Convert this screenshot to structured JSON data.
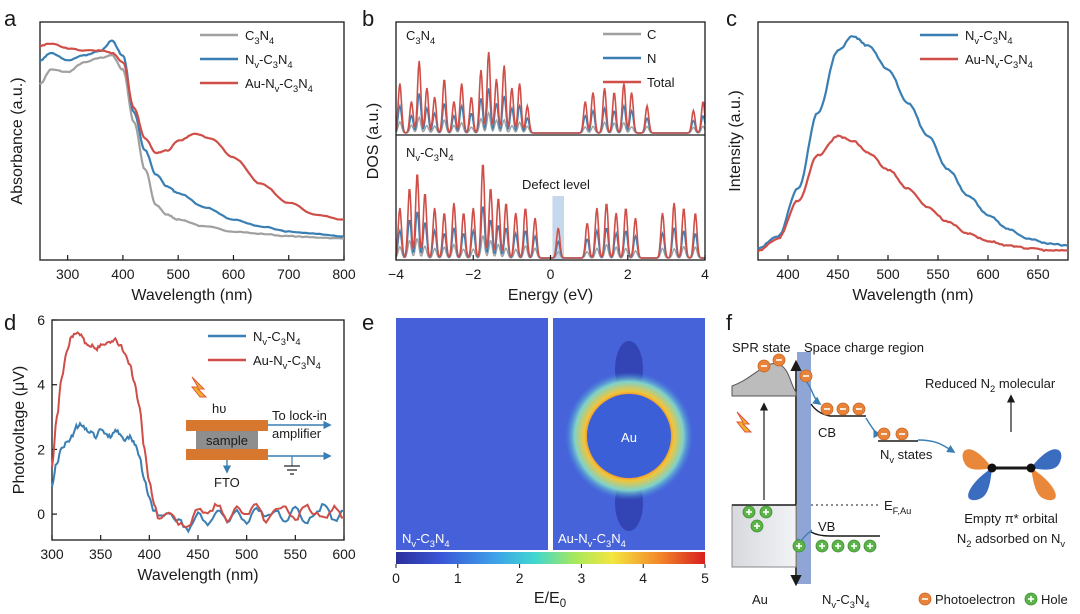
{
  "panels": {
    "a": "a",
    "b": "b",
    "c": "c",
    "d": "d",
    "e": "e",
    "f": "f"
  },
  "colors": {
    "gray": "#a0a0a0",
    "blue": "#3a7fb3",
    "red": "#cf4f48",
    "orange": "#e7833a",
    "green": "#5bb34a",
    "axis": "#1a1a1a"
  },
  "chart_data": [
    {
      "id": "a",
      "type": "line",
      "xlabel": "Wavelength (nm)",
      "ylabel": "Absorbance (a.u.)",
      "xlim": [
        250,
        800
      ],
      "ylim": [
        0,
        1
      ],
      "xticks": [
        300,
        400,
        500,
        600,
        700,
        800
      ],
      "legend_position": "top-right",
      "series": [
        {
          "name": "C3N4",
          "color": "gray",
          "x": [
            250,
            270,
            300,
            330,
            360,
            380,
            400,
            420,
            440,
            460,
            480,
            500,
            550,
            600,
            650,
            700,
            750,
            800
          ],
          "y": [
            0.74,
            0.8,
            0.79,
            0.83,
            0.85,
            0.86,
            0.8,
            0.58,
            0.38,
            0.23,
            0.19,
            0.17,
            0.14,
            0.12,
            0.11,
            0.1,
            0.095,
            0.09
          ]
        },
        {
          "name": "Nv-C3N4",
          "color": "blue",
          "x": [
            250,
            270,
            300,
            330,
            360,
            380,
            400,
            420,
            440,
            460,
            480,
            500,
            550,
            600,
            650,
            700,
            750,
            800
          ],
          "y": [
            0.84,
            0.87,
            0.84,
            0.86,
            0.88,
            0.92,
            0.86,
            0.62,
            0.46,
            0.36,
            0.31,
            0.28,
            0.22,
            0.17,
            0.14,
            0.12,
            0.11,
            0.1
          ]
        },
        {
          "name": "Au-Nv-C3N4",
          "color": "red",
          "x": [
            250,
            270,
            300,
            330,
            360,
            380,
            400,
            420,
            440,
            460,
            480,
            500,
            530,
            560,
            600,
            650,
            700,
            750,
            800
          ],
          "y": [
            0.9,
            0.91,
            0.89,
            0.88,
            0.88,
            0.87,
            0.83,
            0.64,
            0.51,
            0.45,
            0.46,
            0.5,
            0.53,
            0.51,
            0.43,
            0.32,
            0.24,
            0.19,
            0.17
          ]
        }
      ],
      "legend_labels": [
        {
          "prefix": "C",
          "parts": [
            [
              "C",
              "",
              ""
            ],
            [
              "3",
              "sub",
              ""
            ],
            [
              "N",
              "",
              ""
            ],
            [
              "4",
              "sub",
              ""
            ]
          ]
        }
      ],
      "legend": [
        {
          "series": "C3N4",
          "parts": [
            [
              "C",
              ""
            ],
            [
              "3",
              "sub"
            ],
            [
              "N",
              ""
            ],
            [
              "4",
              "sub"
            ]
          ]
        },
        {
          "series": "Nv-C3N4",
          "parts": [
            [
              "N",
              ""
            ],
            [
              "v",
              "sub"
            ],
            [
              "-C",
              ""
            ],
            [
              "3",
              "sub"
            ],
            [
              "N",
              ""
            ],
            [
              "4",
              "sub"
            ]
          ]
        },
        {
          "series": "Au-Nv-C3N4",
          "parts": [
            [
              "Au-N",
              ""
            ],
            [
              "v",
              "sub"
            ],
            [
              "-C",
              ""
            ],
            [
              "3",
              "sub"
            ],
            [
              "N",
              ""
            ],
            [
              "4",
              "sub"
            ]
          ]
        }
      ]
    },
    {
      "id": "b",
      "type": "line",
      "xlabel": "Energy (eV)",
      "ylabel": "DOS (a.u.)",
      "xlim": [
        -4,
        4
      ],
      "xticks": [
        "-4",
        "-2",
        "0",
        "2",
        "4"
      ],
      "xtick_values": [
        -4,
        -2,
        0,
        2,
        4
      ],
      "legend_position": "top-right",
      "top_label": [
        [
          "C",
          ""
        ],
        [
          "3",
          "sub"
        ],
        [
          "N",
          ""
        ],
        [
          "4",
          "sub"
        ]
      ],
      "bottom_label": [
        [
          "N",
          ""
        ],
        [
          "v",
          "sub"
        ],
        [
          "-C",
          ""
        ],
        [
          "3",
          "sub"
        ],
        [
          "N",
          ""
        ],
        [
          "4",
          "sub"
        ]
      ],
      "annotation": "Defect level",
      "defect_band": [
        0.05,
        0.35
      ],
      "legend": [
        {
          "name": "C",
          "color": "gray"
        },
        {
          "name": "N",
          "color": "blue"
        },
        {
          "name": "Total",
          "color": "red"
        }
      ],
      "top_peaks": [
        {
          "x": -3.9,
          "h": 0.55
        },
        {
          "x": -3.6,
          "h": 0.35
        },
        {
          "x": -3.4,
          "h": 0.8
        },
        {
          "x": -3.2,
          "h": 0.5
        },
        {
          "x": -3.0,
          "h": 0.4
        },
        {
          "x": -2.75,
          "h": 0.6
        },
        {
          "x": -2.5,
          "h": 0.35
        },
        {
          "x": -2.3,
          "h": 0.55
        },
        {
          "x": -2.05,
          "h": 0.4
        },
        {
          "x": -1.8,
          "h": 0.7
        },
        {
          "x": -1.6,
          "h": 0.9
        },
        {
          "x": -1.4,
          "h": 0.6
        },
        {
          "x": -1.2,
          "h": 0.75
        },
        {
          "x": -1.0,
          "h": 0.5
        },
        {
          "x": -0.8,
          "h": 0.55
        },
        {
          "x": -0.6,
          "h": 0.3
        },
        {
          "x": 0.9,
          "h": 0.35
        },
        {
          "x": 1.1,
          "h": 0.45
        },
        {
          "x": 1.4,
          "h": 0.5
        },
        {
          "x": 1.65,
          "h": 0.45
        },
        {
          "x": 1.9,
          "h": 0.55
        },
        {
          "x": 2.1,
          "h": 0.45
        },
        {
          "x": 2.5,
          "h": 0.3
        },
        {
          "x": 3.7,
          "h": 0.25
        },
        {
          "x": 3.95,
          "h": 0.35
        }
      ],
      "bottom_peaks": [
        {
          "x": -3.9,
          "h": 0.5
        },
        {
          "x": -3.65,
          "h": 0.7
        },
        {
          "x": -3.45,
          "h": 0.85
        },
        {
          "x": -3.25,
          "h": 0.65
        },
        {
          "x": -3.0,
          "h": 0.5
        },
        {
          "x": -2.75,
          "h": 0.45
        },
        {
          "x": -2.5,
          "h": 0.55
        },
        {
          "x": -2.25,
          "h": 0.45
        },
        {
          "x": -2.0,
          "h": 0.5
        },
        {
          "x": -1.75,
          "h": 0.95
        },
        {
          "x": -1.55,
          "h": 0.7
        },
        {
          "x": -1.35,
          "h": 0.6
        },
        {
          "x": -1.15,
          "h": 0.55
        },
        {
          "x": -0.9,
          "h": 0.45
        },
        {
          "x": -0.65,
          "h": 0.5
        },
        {
          "x": -0.4,
          "h": 0.4
        },
        {
          "x": 0.2,
          "h": 0.3
        },
        {
          "x": 0.95,
          "h": 0.35
        },
        {
          "x": 1.2,
          "h": 0.5
        },
        {
          "x": 1.45,
          "h": 0.55
        },
        {
          "x": 1.7,
          "h": 0.45
        },
        {
          "x": 1.95,
          "h": 0.5
        },
        {
          "x": 2.2,
          "h": 0.4
        },
        {
          "x": 2.9,
          "h": 0.45
        },
        {
          "x": 3.2,
          "h": 0.55
        },
        {
          "x": 3.45,
          "h": 0.5
        },
        {
          "x": 3.75,
          "h": 0.45
        }
      ]
    },
    {
      "id": "c",
      "type": "line",
      "xlabel": "Wavelength (nm)",
      "ylabel": "Intensity (a.u.)",
      "xlim": [
        370,
        680
      ],
      "ylim": [
        0,
        1
      ],
      "xticks": [
        400,
        450,
        500,
        550,
        600,
        650
      ],
      "legend_position": "top-right",
      "series": [
        {
          "name": "Nv-C3N4",
          "color": "blue",
          "x": [
            370,
            390,
            410,
            430,
            450,
            465,
            480,
            500,
            520,
            540,
            560,
            580,
            600,
            620,
            640,
            660,
            680
          ],
          "y": [
            0.05,
            0.1,
            0.3,
            0.62,
            0.88,
            0.94,
            0.9,
            0.8,
            0.66,
            0.52,
            0.38,
            0.27,
            0.19,
            0.13,
            0.09,
            0.07,
            0.06
          ]
        },
        {
          "name": "Au-Nv-C3N4",
          "color": "red",
          "x": [
            370,
            390,
            410,
            430,
            450,
            465,
            480,
            500,
            520,
            540,
            560,
            580,
            600,
            620,
            640,
            660,
            680
          ],
          "y": [
            0.04,
            0.09,
            0.25,
            0.44,
            0.52,
            0.5,
            0.45,
            0.38,
            0.3,
            0.22,
            0.16,
            0.11,
            0.08,
            0.06,
            0.05,
            0.04,
            0.04
          ]
        }
      ],
      "legend": [
        {
          "series": "Nv-C3N4",
          "parts": [
            [
              "N",
              ""
            ],
            [
              "v",
              "sub"
            ],
            [
              "-C",
              ""
            ],
            [
              "3",
              "sub"
            ],
            [
              "N",
              ""
            ],
            [
              "4",
              "sub"
            ]
          ]
        },
        {
          "series": "Au-Nv-C3N4",
          "parts": [
            [
              "Au-N",
              ""
            ],
            [
              "v",
              "sub"
            ],
            [
              "-C",
              ""
            ],
            [
              "3",
              "sub"
            ],
            [
              "N",
              ""
            ],
            [
              "4",
              "sub"
            ]
          ]
        }
      ]
    },
    {
      "id": "d",
      "type": "line",
      "xlabel": "Wavelength (nm)",
      "ylabel": "Photovoltage (μV)",
      "xlim": [
        300,
        600
      ],
      "ylim": [
        -0.8,
        6
      ],
      "xticks": [
        300,
        350,
        400,
        450,
        500,
        550,
        600
      ],
      "yticks": [
        0,
        2,
        4,
        6
      ],
      "legend_position": "top-right",
      "series": [
        {
          "name": "Nv-C3N4",
          "color": "blue",
          "x": [
            300,
            305,
            310,
            315,
            320,
            325,
            330,
            335,
            340,
            345,
            350,
            355,
            360,
            365,
            370,
            375,
            380,
            385,
            390,
            395,
            400,
            405,
            410,
            420,
            430,
            440,
            450,
            460,
            470,
            480,
            490,
            500,
            510,
            520,
            530,
            540,
            550,
            560,
            570,
            580,
            590,
            600
          ],
          "y": [
            0.9,
            1.6,
            2.0,
            2.2,
            2.4,
            2.7,
            2.8,
            2.6,
            2.5,
            2.4,
            2.6,
            2.5,
            2.4,
            2.6,
            2.5,
            2.3,
            2.4,
            2.2,
            1.8,
            1.0,
            0.5,
            0.1,
            -0.1,
            0.0,
            -0.2,
            -0.5,
            0.0,
            -0.3,
            0.1,
            -0.2,
            0.1,
            -0.3,
            0.2,
            -0.1,
            0.1,
            -0.2,
            0.2,
            -0.3,
            0.0,
            0.3,
            -0.2,
            0.1
          ]
        },
        {
          "name": "Au-Nv-C3N4",
          "color": "red",
          "x": [
            300,
            305,
            310,
            315,
            320,
            325,
            330,
            335,
            340,
            345,
            350,
            355,
            360,
            365,
            370,
            375,
            380,
            385,
            390,
            395,
            400,
            405,
            410,
            420,
            430,
            440,
            450,
            460,
            470,
            480,
            490,
            500,
            510,
            520,
            530,
            540,
            550,
            560,
            570,
            580,
            590,
            600
          ],
          "y": [
            1.5,
            3.0,
            4.2,
            5.0,
            5.5,
            5.6,
            5.5,
            5.3,
            5.2,
            5.1,
            5.2,
            5.3,
            5.3,
            5.4,
            5.2,
            5.0,
            4.6,
            4.0,
            3.3,
            2.0,
            1.0,
            0.3,
            -0.2,
            0.1,
            -0.3,
            -0.4,
            0.2,
            0.0,
            0.3,
            -0.2,
            0.2,
            0.0,
            0.3,
            -0.2,
            0.1,
            0.2,
            -0.2,
            0.3,
            0.0,
            -0.1,
            0.2,
            -0.1
          ]
        }
      ],
      "legend": [
        {
          "series": "Nv-C3N4",
          "parts": [
            [
              "N",
              ""
            ],
            [
              "v",
              "sub"
            ],
            [
              "-C",
              ""
            ],
            [
              "3",
              "sub"
            ],
            [
              "N",
              ""
            ],
            [
              "4",
              "sub"
            ]
          ]
        },
        {
          "series": "Au-Nv-C3N4",
          "parts": [
            [
              "Au-N",
              ""
            ],
            [
              "v",
              "sub"
            ],
            [
              "-C",
              ""
            ],
            [
              "3",
              "sub"
            ],
            [
              "N",
              ""
            ],
            [
              "4",
              "sub"
            ]
          ]
        }
      ],
      "inset": {
        "hv": "hυ",
        "sample": "sample",
        "lockin_1": "To lock-in",
        "lockin_2": "amplifier",
        "fto": "FTO"
      }
    },
    {
      "id": "e",
      "type": "heatmap",
      "xlabel": [
        [
          "E/E",
          ""
        ],
        [
          "0",
          "sub"
        ]
      ],
      "colorbar_range": [
        0,
        5
      ],
      "colorbar_ticks": [
        0,
        1,
        2,
        3,
        4,
        5
      ],
      "left_label": [
        [
          "N",
          ""
        ],
        [
          "v",
          "sub"
        ],
        [
          "-C",
          ""
        ],
        [
          "3",
          "sub"
        ],
        [
          "N",
          ""
        ],
        [
          "4",
          "sub"
        ]
      ],
      "right_label": [
        [
          "Au-N",
          ""
        ],
        [
          "v",
          "sub"
        ],
        [
          "-C",
          ""
        ],
        [
          "3",
          "sub"
        ],
        [
          "N",
          ""
        ],
        [
          "4",
          "sub"
        ]
      ],
      "particle_label": "Au"
    }
  ],
  "schematic_f": {
    "spr_state": "SPR state",
    "space_charge": "Space charge region",
    "reduced": [
      [
        "Reduced N",
        ""
      ],
      [
        "2",
        "sub"
      ],
      [
        " molecular",
        ""
      ]
    ],
    "cb": "CB",
    "vb": "VB",
    "nv_states": [
      [
        "N",
        ""
      ],
      [
        "v",
        "sub"
      ],
      [
        " states",
        ""
      ]
    ],
    "ef": [
      [
        "E",
        ""
      ],
      [
        "F,Au",
        "sub"
      ]
    ],
    "empty_orbital": "Empty π* orbital",
    "adsorbed": [
      [
        "N",
        ""
      ],
      [
        "2",
        "sub"
      ],
      [
        " adsorbed on N",
        ""
      ],
      [
        "v",
        "sub"
      ]
    ],
    "au": "Au",
    "nv_c3n4": [
      [
        "N",
        ""
      ],
      [
        "v",
        "sub"
      ],
      [
        "-C",
        ""
      ],
      [
        "3",
        "sub"
      ],
      [
        "N",
        ""
      ],
      [
        "4",
        "sub"
      ]
    ],
    "photoelectron": "Photoelectron",
    "hole": "Hole"
  }
}
